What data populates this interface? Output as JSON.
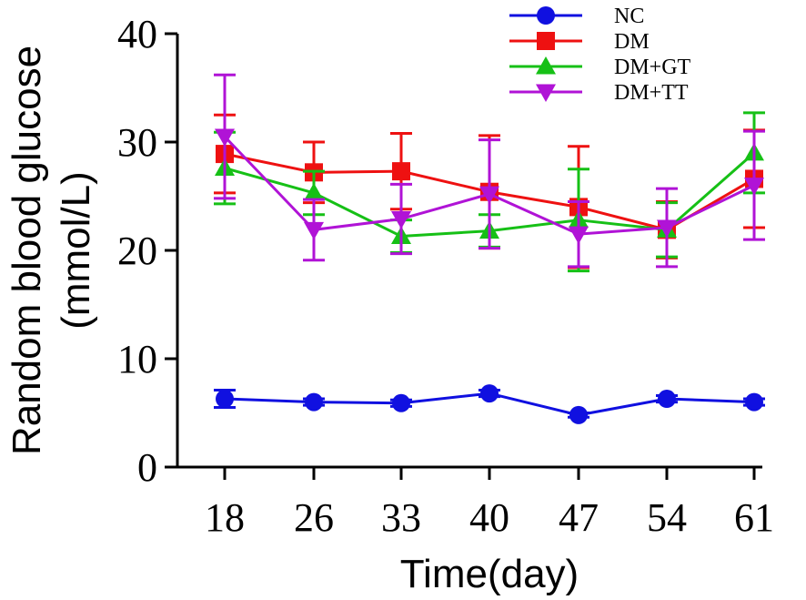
{
  "chart_data": {
    "type": "line",
    "title": "",
    "xlabel": "Time(day)",
    "ylabel_line1": "Random blood glucose",
    "ylabel_line2": "(mmol/L)",
    "x": [
      18,
      26,
      33,
      40,
      47,
      54,
      61
    ],
    "x_tick_labels": [
      "18",
      "26",
      "33",
      "40",
      "47",
      "54",
      "61"
    ],
    "ylim": [
      0,
      40
    ],
    "y_ticks": [
      0,
      10,
      20,
      30,
      40
    ],
    "y_tick_labels": [
      "0",
      "10",
      "20",
      "30",
      "40"
    ],
    "grid": false,
    "legend_position": "top-right",
    "series": [
      {
        "name": "NC",
        "color": "#1010e0",
        "marker": "circle",
        "values": [
          6.3,
          6.0,
          5.9,
          6.8,
          4.8,
          6.3,
          6.0
        ],
        "errors": [
          0.8,
          0.3,
          0.3,
          0.3,
          0.2,
          0.3,
          0.3
        ]
      },
      {
        "name": "DM",
        "color": "#ee1111",
        "marker": "square",
        "values": [
          28.9,
          27.2,
          27.3,
          25.4,
          24.0,
          21.9,
          26.6
        ],
        "errors": [
          3.6,
          2.8,
          3.5,
          5.2,
          5.6,
          2.6,
          4.5
        ]
      },
      {
        "name": "DM+GT",
        "color": "#16c016",
        "marker": "triangle-up",
        "values": [
          27.6,
          25.3,
          21.3,
          21.8,
          22.8,
          21.9,
          29.0
        ],
        "errors": [
          3.3,
          2.0,
          1.5,
          1.5,
          4.7,
          2.5,
          3.7
        ]
      },
      {
        "name": "DM+TT",
        "color": "#b013d6",
        "marker": "triangle-down",
        "values": [
          30.5,
          21.9,
          22.9,
          25.2,
          21.5,
          22.1,
          26.0
        ],
        "errors": [
          5.7,
          2.8,
          3.2,
          5.0,
          3.0,
          3.6,
          5.0
        ]
      }
    ]
  }
}
